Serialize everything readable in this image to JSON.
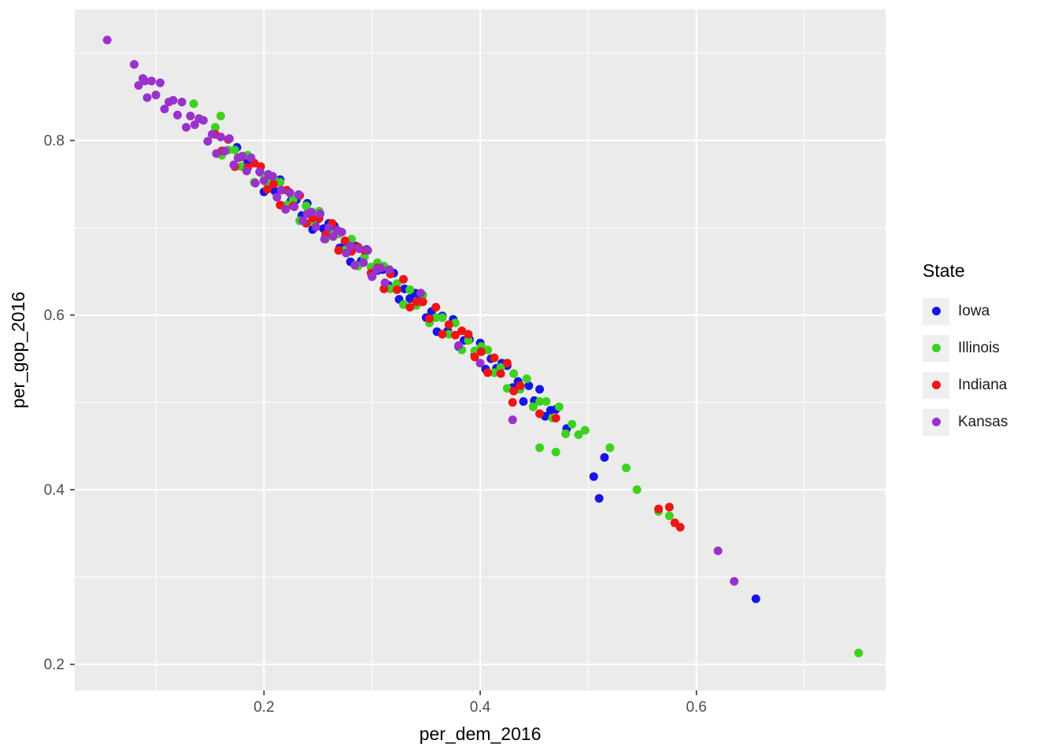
{
  "colors": {
    "panel_bg": "#EBEBEB",
    "grid": "#FFFFFF",
    "tick_label": "#4D4D4D",
    "axis_title": "#000000",
    "legend_key_bg": "#EFEFEF"
  },
  "chart_data": {
    "type": "scatter",
    "title": "",
    "xlabel": "per_dem_2016",
    "ylabel": "per_gop_2016",
    "legend_title": "State",
    "legend_position": "right",
    "grid": true,
    "xlim": [
      0.025,
      0.775
    ],
    "ylim": [
      0.17,
      0.95
    ],
    "x_ticks": [
      0.2,
      0.4,
      0.6
    ],
    "y_ticks": [
      0.2,
      0.4,
      0.6,
      0.8
    ],
    "x_minor": [
      0.1,
      0.3,
      0.5,
      0.7
    ],
    "y_minor": [
      0.3,
      0.5,
      0.7,
      0.9
    ],
    "series": [
      {
        "name": "Iowa",
        "color": "#1515E8",
        "points": [
          [
            0.175,
            0.792
          ],
          [
            0.185,
            0.776
          ],
          [
            0.2,
            0.741
          ],
          [
            0.205,
            0.759
          ],
          [
            0.21,
            0.742
          ],
          [
            0.215,
            0.755
          ],
          [
            0.22,
            0.724
          ],
          [
            0.225,
            0.731
          ],
          [
            0.23,
            0.732
          ],
          [
            0.235,
            0.714
          ],
          [
            0.24,
            0.728
          ],
          [
            0.245,
            0.698
          ],
          [
            0.25,
            0.71
          ],
          [
            0.255,
            0.699
          ],
          [
            0.26,
            0.705
          ],
          [
            0.265,
            0.702
          ],
          [
            0.27,
            0.677
          ],
          [
            0.275,
            0.684
          ],
          [
            0.28,
            0.661
          ],
          [
            0.285,
            0.679
          ],
          [
            0.29,
            0.662
          ],
          [
            0.295,
            0.675
          ],
          [
            0.3,
            0.644
          ],
          [
            0.305,
            0.651
          ],
          [
            0.31,
            0.652
          ],
          [
            0.315,
            0.634
          ],
          [
            0.32,
            0.648
          ],
          [
            0.325,
            0.618
          ],
          [
            0.33,
            0.63
          ],
          [
            0.335,
            0.619
          ],
          [
            0.34,
            0.625
          ],
          [
            0.345,
            0.622
          ],
          [
            0.35,
            0.597
          ],
          [
            0.355,
            0.604
          ],
          [
            0.36,
            0.581
          ],
          [
            0.365,
            0.599
          ],
          [
            0.37,
            0.582
          ],
          [
            0.375,
            0.595
          ],
          [
            0.38,
            0.564
          ],
          [
            0.385,
            0.571
          ],
          [
            0.39,
            0.572
          ],
          [
            0.395,
            0.554
          ],
          [
            0.4,
            0.568
          ],
          [
            0.405,
            0.538
          ],
          [
            0.41,
            0.55
          ],
          [
            0.415,
            0.539
          ],
          [
            0.42,
            0.545
          ],
          [
            0.425,
            0.542
          ],
          [
            0.43,
            0.517
          ],
          [
            0.435,
            0.524
          ],
          [
            0.44,
            0.501
          ],
          [
            0.445,
            0.519
          ],
          [
            0.45,
            0.502
          ],
          [
            0.455,
            0.515
          ],
          [
            0.46,
            0.484
          ],
          [
            0.465,
            0.491
          ],
          [
            0.47,
            0.492
          ],
          [
            0.48,
            0.47
          ],
          [
            0.505,
            0.415
          ],
          [
            0.51,
            0.39
          ],
          [
            0.515,
            0.437
          ],
          [
            0.655,
            0.275
          ]
        ]
      },
      {
        "name": "Illinois",
        "color": "#3CD21E",
        "points": [
          [
            0.135,
            0.842
          ],
          [
            0.16,
            0.828
          ],
          [
            0.155,
            0.815
          ],
          [
            0.161,
            0.783
          ],
          [
            0.167,
            0.789
          ],
          [
            0.173,
            0.789
          ],
          [
            0.179,
            0.77
          ],
          [
            0.185,
            0.783
          ],
          [
            0.191,
            0.752
          ],
          [
            0.197,
            0.763
          ],
          [
            0.203,
            0.751
          ],
          [
            0.209,
            0.756
          ],
          [
            0.215,
            0.752
          ],
          [
            0.221,
            0.726
          ],
          [
            0.227,
            0.732
          ],
          [
            0.233,
            0.708
          ],
          [
            0.239,
            0.725
          ],
          [
            0.245,
            0.707
          ],
          [
            0.251,
            0.719
          ],
          [
            0.257,
            0.687
          ],
          [
            0.263,
            0.693
          ],
          [
            0.269,
            0.693
          ],
          [
            0.275,
            0.674
          ],
          [
            0.281,
            0.687
          ],
          [
            0.287,
            0.656
          ],
          [
            0.293,
            0.667
          ],
          [
            0.299,
            0.655
          ],
          [
            0.305,
            0.66
          ],
          [
            0.311,
            0.656
          ],
          [
            0.317,
            0.63
          ],
          [
            0.323,
            0.636
          ],
          [
            0.329,
            0.612
          ],
          [
            0.335,
            0.629
          ],
          [
            0.341,
            0.611
          ],
          [
            0.347,
            0.623
          ],
          [
            0.353,
            0.591
          ],
          [
            0.359,
            0.597
          ],
          [
            0.365,
            0.597
          ],
          [
            0.371,
            0.578
          ],
          [
            0.377,
            0.591
          ],
          [
            0.383,
            0.56
          ],
          [
            0.389,
            0.571
          ],
          [
            0.395,
            0.559
          ],
          [
            0.401,
            0.564
          ],
          [
            0.407,
            0.56
          ],
          [
            0.413,
            0.534
          ],
          [
            0.419,
            0.54
          ],
          [
            0.425,
            0.516
          ],
          [
            0.431,
            0.533
          ],
          [
            0.437,
            0.515
          ],
          [
            0.443,
            0.527
          ],
          [
            0.449,
            0.495
          ],
          [
            0.455,
            0.501
          ],
          [
            0.461,
            0.501
          ],
          [
            0.467,
            0.482
          ],
          [
            0.473,
            0.495
          ],
          [
            0.479,
            0.464
          ],
          [
            0.485,
            0.475
          ],
          [
            0.491,
            0.463
          ],
          [
            0.497,
            0.468
          ],
          [
            0.455,
            0.448
          ],
          [
            0.47,
            0.443
          ],
          [
            0.52,
            0.448
          ],
          [
            0.535,
            0.425
          ],
          [
            0.545,
            0.4
          ],
          [
            0.565,
            0.375
          ],
          [
            0.575,
            0.37
          ],
          [
            0.75,
            0.213
          ]
        ]
      },
      {
        "name": "Indiana",
        "color": "#F01414",
        "points": [
          [
            0.155,
            0.807
          ],
          [
            0.161,
            0.788
          ],
          [
            0.167,
            0.801
          ],
          [
            0.173,
            0.77
          ],
          [
            0.179,
            0.781
          ],
          [
            0.185,
            0.769
          ],
          [
            0.191,
            0.774
          ],
          [
            0.197,
            0.77
          ],
          [
            0.203,
            0.744
          ],
          [
            0.209,
            0.75
          ],
          [
            0.215,
            0.726
          ],
          [
            0.221,
            0.743
          ],
          [
            0.227,
            0.725
          ],
          [
            0.233,
            0.737
          ],
          [
            0.239,
            0.705
          ],
          [
            0.245,
            0.711
          ],
          [
            0.251,
            0.711
          ],
          [
            0.257,
            0.692
          ],
          [
            0.263,
            0.705
          ],
          [
            0.269,
            0.674
          ],
          [
            0.275,
            0.685
          ],
          [
            0.281,
            0.673
          ],
          [
            0.287,
            0.678
          ],
          [
            0.293,
            0.674
          ],
          [
            0.299,
            0.648
          ],
          [
            0.305,
            0.654
          ],
          [
            0.311,
            0.63
          ],
          [
            0.317,
            0.647
          ],
          [
            0.323,
            0.629
          ],
          [
            0.329,
            0.641
          ],
          [
            0.335,
            0.609
          ],
          [
            0.341,
            0.615
          ],
          [
            0.347,
            0.615
          ],
          [
            0.353,
            0.596
          ],
          [
            0.359,
            0.609
          ],
          [
            0.365,
            0.578
          ],
          [
            0.371,
            0.589
          ],
          [
            0.377,
            0.577
          ],
          [
            0.383,
            0.582
          ],
          [
            0.389,
            0.578
          ],
          [
            0.395,
            0.552
          ],
          [
            0.401,
            0.558
          ],
          [
            0.407,
            0.534
          ],
          [
            0.413,
            0.551
          ],
          [
            0.419,
            0.533
          ],
          [
            0.425,
            0.545
          ],
          [
            0.431,
            0.513
          ],
          [
            0.437,
            0.519
          ],
          [
            0.43,
            0.5
          ],
          [
            0.455,
            0.487
          ],
          [
            0.47,
            0.482
          ],
          [
            0.565,
            0.378
          ],
          [
            0.575,
            0.38
          ],
          [
            0.58,
            0.362
          ],
          [
            0.585,
            0.357
          ]
        ]
      },
      {
        "name": "Kansas",
        "color": "#9932CC",
        "points": [
          [
            0.055,
            0.915
          ],
          [
            0.09,
            0.868
          ],
          [
            0.08,
            0.887
          ],
          [
            0.084,
            0.863
          ],
          [
            0.088,
            0.871
          ],
          [
            0.092,
            0.849
          ],
          [
            0.096,
            0.868
          ],
          [
            0.1,
            0.852
          ],
          [
            0.104,
            0.866
          ],
          [
            0.108,
            0.836
          ],
          [
            0.112,
            0.844
          ],
          [
            0.116,
            0.846
          ],
          [
            0.12,
            0.829
          ],
          [
            0.124,
            0.844
          ],
          [
            0.128,
            0.815
          ],
          [
            0.132,
            0.828
          ],
          [
            0.136,
            0.818
          ],
          [
            0.14,
            0.825
          ],
          [
            0.144,
            0.823
          ],
          [
            0.148,
            0.799
          ],
          [
            0.152,
            0.807
          ],
          [
            0.156,
            0.785
          ],
          [
            0.16,
            0.804
          ],
          [
            0.164,
            0.788
          ],
          [
            0.168,
            0.802
          ],
          [
            0.172,
            0.772
          ],
          [
            0.176,
            0.78
          ],
          [
            0.18,
            0.782
          ],
          [
            0.184,
            0.765
          ],
          [
            0.188,
            0.78
          ],
          [
            0.192,
            0.751
          ],
          [
            0.196,
            0.764
          ],
          [
            0.2,
            0.754
          ],
          [
            0.204,
            0.761
          ],
          [
            0.208,
            0.759
          ],
          [
            0.212,
            0.735
          ],
          [
            0.216,
            0.743
          ],
          [
            0.22,
            0.721
          ],
          [
            0.224,
            0.74
          ],
          [
            0.228,
            0.724
          ],
          [
            0.232,
            0.738
          ],
          [
            0.236,
            0.708
          ],
          [
            0.24,
            0.716
          ],
          [
            0.244,
            0.718
          ],
          [
            0.248,
            0.701
          ],
          [
            0.252,
            0.716
          ],
          [
            0.256,
            0.687
          ],
          [
            0.26,
            0.7
          ],
          [
            0.264,
            0.69
          ],
          [
            0.268,
            0.697
          ],
          [
            0.272,
            0.695
          ],
          [
            0.276,
            0.671
          ],
          [
            0.28,
            0.679
          ],
          [
            0.284,
            0.657
          ],
          [
            0.288,
            0.676
          ],
          [
            0.292,
            0.66
          ],
          [
            0.296,
            0.674
          ],
          [
            0.3,
            0.644
          ],
          [
            0.304,
            0.652
          ],
          [
            0.308,
            0.654
          ],
          [
            0.312,
            0.637
          ],
          [
            0.316,
            0.652
          ],
          [
            0.345,
            0.625
          ],
          [
            0.38,
            0.565
          ],
          [
            0.4,
            0.545
          ],
          [
            0.43,
            0.48
          ],
          [
            0.62,
            0.33
          ],
          [
            0.635,
            0.295
          ]
        ]
      }
    ]
  }
}
